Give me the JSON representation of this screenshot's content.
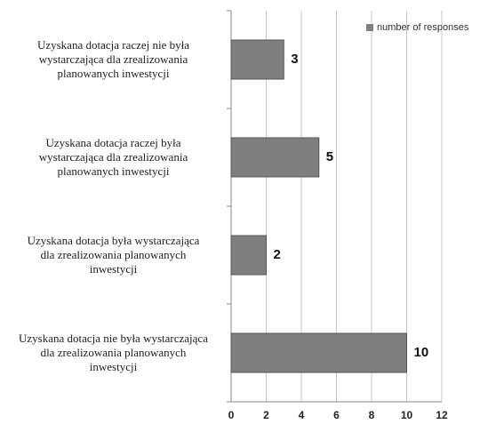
{
  "chart_data": {
    "type": "bar",
    "orientation": "horizontal",
    "categories": [
      "Uzyskana dotacja raczej nie była\nwystarczająca dla zrealizowania\nplanowanych inwestycji",
      "Uzyskana dotacja  raczej była\nwystarczająca dla zrealizowania\nplanowanych inwestycji",
      "Uzyskana dotacja  była wystarczająca\ndla zrealizowania planowanych\ninwestycji",
      "Uzyskana dotacja nie była wystarczająca\ndla zrealizowania planowanych\ninwestycji"
    ],
    "series": [
      {
        "name": "number of responses",
        "color": "#7f7f7f",
        "values": [
          3,
          5,
          2,
          10
        ]
      }
    ],
    "xlim": [
      0,
      12
    ],
    "xticks": [
      0,
      2,
      4,
      6,
      8,
      10,
      12
    ],
    "grid": true,
    "legend": "top-right"
  }
}
